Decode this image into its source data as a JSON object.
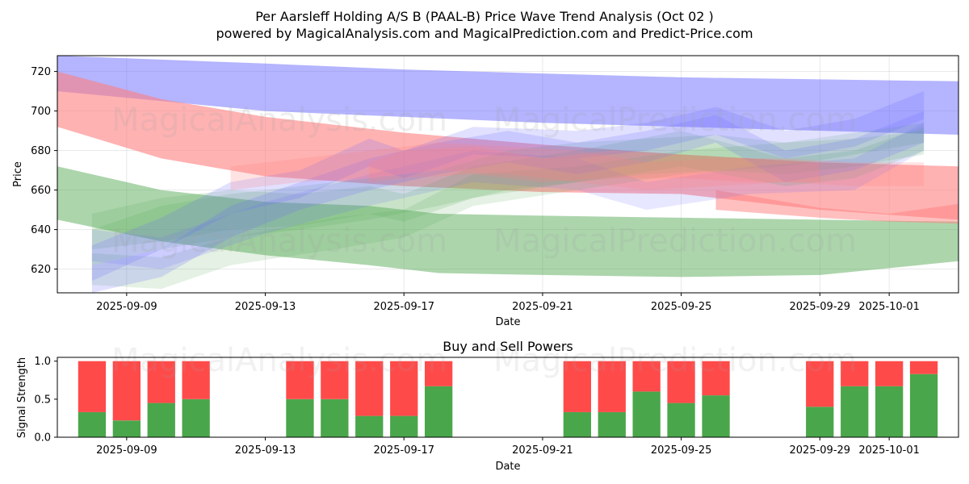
{
  "header": {
    "title_line1": "Per Aarsleff Holding A/S B (PAAL-B) Price Wave Trend Analysis (Oct 02 )",
    "title_line2": "powered by MagicalAnalysis.com and MagicalPrediction.com and Predict-Price.com"
  },
  "watermarks": {
    "left": "MagicalAnalysis.com",
    "right": "MagicalPrediction.com"
  },
  "colors": {
    "blue": "#6a6aff",
    "red": "#ff7f7f",
    "green": "#5aab5a",
    "buy": "#4aa64a",
    "sell": "#ff4a4a"
  },
  "chart_data": [
    {
      "type": "area",
      "title": "",
      "xlabel": "Date",
      "ylabel": "Price",
      "xlim": [
        "2025-09-07",
        "2025-10-03"
      ],
      "ylim": [
        608,
        728
      ],
      "yticks": [
        620,
        640,
        660,
        680,
        700,
        720
      ],
      "xticks": [
        "2025-09-09",
        "2025-09-13",
        "2025-09-17",
        "2025-09-21",
        "2025-09-25",
        "2025-09-29",
        "2025-10-01"
      ],
      "grid": true,
      "bands": [
        {
          "name": "upper-blue",
          "color": "blue",
          "opacity": 0.5,
          "x": [
            "2025-09-07",
            "2025-09-10",
            "2025-09-13",
            "2025-09-17",
            "2025-09-21",
            "2025-09-25",
            "2025-09-29",
            "2025-10-03"
          ],
          "upper": [
            728,
            726,
            724,
            721,
            719,
            717,
            716,
            715
          ],
          "lower": [
            710,
            705,
            700,
            697,
            694,
            692,
            690,
            688
          ]
        },
        {
          "name": "upper-red",
          "color": "red",
          "opacity": 0.6,
          "x": [
            "2025-09-07",
            "2025-09-10",
            "2025-09-13",
            "2025-09-17",
            "2025-09-21",
            "2025-09-25",
            "2025-09-29",
            "2025-10-03"
          ],
          "upper": [
            720,
            706,
            697,
            689,
            683,
            678,
            674,
            672
          ],
          "lower": [
            692,
            676,
            667,
            662,
            659,
            658,
            650,
            645
          ]
        },
        {
          "name": "lower-green",
          "color": "green",
          "opacity": 0.5,
          "x": [
            "2025-09-07",
            "2025-09-10",
            "2025-09-13",
            "2025-09-16",
            "2025-09-18",
            "2025-09-21",
            "2025-09-25",
            "2025-09-29",
            "2025-10-03"
          ],
          "upper": [
            672,
            660,
            654,
            652,
            648,
            647,
            646,
            645,
            644
          ],
          "lower": [
            645,
            634,
            627,
            622,
            618,
            617,
            616,
            617,
            624
          ]
        },
        {
          "name": "lower-red",
          "color": "red",
          "opacity": 0.5,
          "x": [
            "2025-09-26",
            "2025-09-29",
            "2025-10-01",
            "2025-10-03"
          ],
          "upper": [
            660,
            651,
            648,
            653
          ],
          "lower": [
            650,
            646,
            644,
            643
          ]
        },
        {
          "name": "wave-green-1",
          "color": "green",
          "opacity": 0.18,
          "x": [
            "2025-09-08",
            "2025-09-10",
            "2025-09-12",
            "2025-09-14",
            "2025-09-16",
            "2025-09-18",
            "2025-09-20",
            "2025-09-22",
            "2025-09-24",
            "2025-09-26",
            "2025-09-28",
            "2025-09-30",
            "2025-10-02"
          ],
          "upper": [
            640,
            652,
            658,
            662,
            666,
            670,
            680,
            684,
            686,
            688,
            684,
            686,
            690
          ],
          "lower": [
            622,
            630,
            636,
            640,
            645,
            652,
            660,
            664,
            668,
            670,
            668,
            672,
            678
          ]
        },
        {
          "name": "wave-green-2",
          "color": "green",
          "opacity": 0.18,
          "x": [
            "2025-09-08",
            "2025-09-10",
            "2025-09-12",
            "2025-09-14",
            "2025-09-16",
            "2025-09-17",
            "2025-09-19",
            "2025-09-22",
            "2025-09-25",
            "2025-09-28",
            "2025-09-30",
            "2025-10-02"
          ],
          "upper": [
            648,
            656,
            660,
            658,
            662,
            658,
            672,
            680,
            690,
            676,
            680,
            692
          ],
          "lower": [
            630,
            634,
            640,
            642,
            648,
            644,
            656,
            664,
            672,
            662,
            666,
            680
          ]
        },
        {
          "name": "wave-green-3",
          "color": "green",
          "opacity": 0.16,
          "x": [
            "2025-09-08",
            "2025-09-10",
            "2025-09-12",
            "2025-09-15",
            "2025-09-17",
            "2025-09-19",
            "2025-09-22",
            "2025-09-25",
            "2025-09-28",
            "2025-10-02"
          ],
          "upper": [
            628,
            626,
            636,
            646,
            650,
            668,
            672,
            680,
            684,
            694
          ],
          "lower": [
            612,
            610,
            622,
            630,
            636,
            652,
            660,
            668,
            672,
            684
          ]
        },
        {
          "name": "wave-blue-1",
          "color": "blue",
          "opacity": 0.2,
          "x": [
            "2025-09-08",
            "2025-09-10",
            "2025-09-12",
            "2025-09-14",
            "2025-09-16",
            "2025-09-17",
            "2025-09-19",
            "2025-09-22",
            "2025-09-24",
            "2025-09-26",
            "2025-09-28",
            "2025-09-30",
            "2025-10-02"
          ],
          "upper": [
            632,
            646,
            664,
            670,
            686,
            680,
            692,
            690,
            694,
            702,
            690,
            696,
            710
          ],
          "lower": [
            614,
            630,
            648,
            656,
            672,
            666,
            678,
            676,
            680,
            688,
            676,
            682,
            696
          ]
        },
        {
          "name": "wave-blue-2",
          "color": "blue",
          "opacity": 0.2,
          "x": [
            "2025-09-08",
            "2025-09-10",
            "2025-09-12",
            "2025-09-14",
            "2025-09-16",
            "2025-09-18",
            "2025-09-20",
            "2025-09-22",
            "2025-09-24",
            "2025-09-26",
            "2025-09-28",
            "2025-09-30",
            "2025-10-02"
          ],
          "upper": [
            622,
            630,
            652,
            664,
            676,
            684,
            690,
            684,
            690,
            698,
            680,
            686,
            700
          ],
          "lower": [
            608,
            616,
            636,
            650,
            660,
            668,
            674,
            668,
            674,
            684,
            664,
            670,
            684
          ]
        },
        {
          "name": "wave-blue-3",
          "color": "blue",
          "opacity": 0.16,
          "x": [
            "2025-09-08",
            "2025-09-10",
            "2025-09-13",
            "2025-09-16",
            "2025-09-19",
            "2025-09-22",
            "2025-09-24",
            "2025-09-27",
            "2025-09-30",
            "2025-10-02"
          ],
          "upper": [
            640,
            636,
            654,
            668,
            680,
            676,
            664,
            672,
            676,
            694
          ],
          "lower": [
            624,
            620,
            638,
            652,
            664,
            660,
            650,
            658,
            660,
            680
          ]
        },
        {
          "name": "wave-red-1",
          "color": "red",
          "opacity": 0.22,
          "x": [
            "2025-09-12",
            "2025-09-14",
            "2025-09-16",
            "2025-09-18",
            "2025-09-20",
            "2025-09-22",
            "2025-09-24",
            "2025-09-26",
            "2025-09-28",
            "2025-09-30",
            "2025-10-02"
          ],
          "upper": [
            672,
            676,
            680,
            684,
            682,
            680,
            674,
            676,
            676,
            674,
            674
          ],
          "lower": [
            660,
            664,
            666,
            670,
            668,
            664,
            660,
            662,
            664,
            662,
            662
          ]
        },
        {
          "name": "wave-brown-1",
          "color": "red",
          "opacity": 0.25,
          "x": [
            "2025-09-16",
            "2025-09-17",
            "2025-09-19",
            "2025-09-21",
            "2025-09-23",
            "2025-09-25",
            "2025-09-27",
            "2025-09-29"
          ],
          "upper": [
            674,
            680,
            682,
            676,
            680,
            678,
            676,
            674
          ],
          "lower": [
            664,
            666,
            668,
            664,
            666,
            666,
            664,
            664
          ]
        }
      ]
    },
    {
      "type": "bar",
      "title": "Buy and Sell Powers",
      "xlabel": "Date",
      "ylabel": "Signal Strength",
      "ylim": [
        0,
        1.05
      ],
      "yticks": [
        0.0,
        0.5,
        1.0
      ],
      "xticks": [
        "2025-09-09",
        "2025-09-13",
        "2025-09-17",
        "2025-09-21",
        "2025-09-25",
        "2025-09-29",
        "2025-10-01"
      ],
      "categories": [
        "2025-09-08",
        "2025-09-09",
        "2025-09-10",
        "2025-09-11",
        "2025-09-14",
        "2025-09-15",
        "2025-09-16",
        "2025-09-17",
        "2025-09-18",
        "2025-09-22",
        "2025-09-23",
        "2025-09-24",
        "2025-09-25",
        "2025-09-26",
        "2025-09-29",
        "2025-09-30",
        "2025-10-01",
        "2025-10-02"
      ],
      "series": [
        {
          "name": "Buy",
          "color": "buy",
          "values": [
            0.33,
            0.22,
            0.45,
            0.5,
            0.5,
            0.5,
            0.28,
            0.28,
            0.67,
            0.33,
            0.33,
            0.6,
            0.45,
            0.55,
            0.4,
            0.67,
            0.67,
            0.83
          ]
        },
        {
          "name": "Sell",
          "color": "sell",
          "values": [
            0.67,
            0.78,
            0.55,
            0.5,
            0.5,
            0.5,
            0.72,
            0.72,
            0.33,
            0.67,
            0.67,
            0.4,
            0.55,
            0.45,
            0.6,
            0.33,
            0.33,
            0.17
          ]
        }
      ]
    }
  ]
}
